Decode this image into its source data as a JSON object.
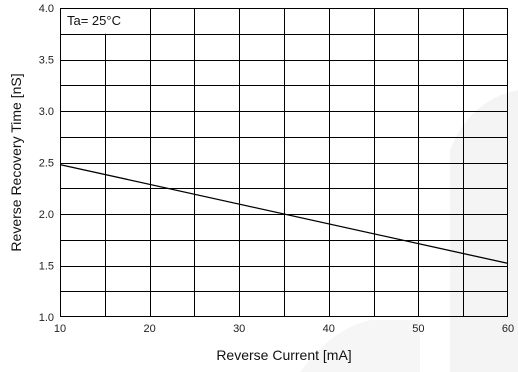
{
  "chart_data": {
    "type": "line",
    "title": "",
    "xlabel": "Reverse Current [mA]",
    "ylabel": "Reverse Recovery Time [nS]",
    "xlim": [
      10,
      60
    ],
    "ylim": [
      1.0,
      4.0
    ],
    "x_ticks": [
      "10",
      "20",
      "30",
      "40",
      "50",
      "60"
    ],
    "y_ticks": [
      "1.0",
      "1.5",
      "2.0",
      "2.5",
      "3.0",
      "3.5",
      "4.0"
    ],
    "grid": true,
    "annotation": "Ta= 25°C",
    "series": [
      {
        "x": [
          10,
          60
        ],
        "y": [
          2.48,
          1.52
        ]
      }
    ],
    "colors": {
      "line": "#000000",
      "grid": "#000000",
      "background": "#ffffff"
    }
  }
}
